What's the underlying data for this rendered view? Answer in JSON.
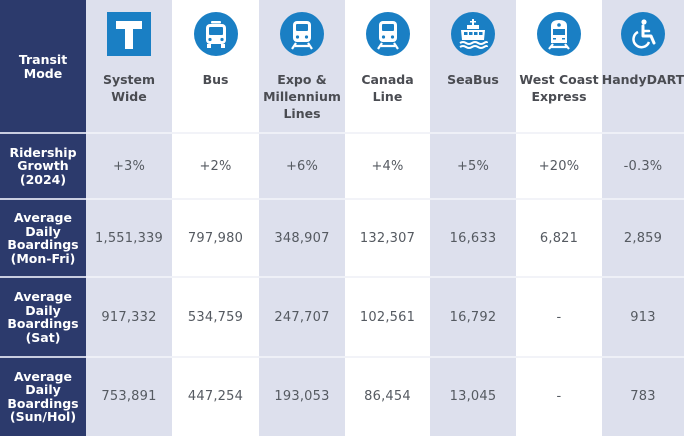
{
  "table": {
    "corner_label": "Transit Mode",
    "colors": {
      "label_column": "#2c3a6c",
      "shaded_column": "#dde0ed",
      "plain_column": "#ffffff",
      "icon_blue": "#1a7fc4"
    },
    "modes": [
      {
        "name_line1": "System",
        "name_line2": "Wide",
        "name_line3": "",
        "icon": "transit-t-logo-icon"
      },
      {
        "name_line1": "Bus",
        "name_line2": "",
        "name_line3": "",
        "icon": "bus-icon"
      },
      {
        "name_line1": "Expo &",
        "name_line2": "Millennium",
        "name_line3": "Lines",
        "icon": "skytrain-icon"
      },
      {
        "name_line1": "Canada",
        "name_line2": "Line",
        "name_line3": "",
        "icon": "skytrain-icon"
      },
      {
        "name_line1": "SeaBus",
        "name_line2": "",
        "name_line3": "",
        "icon": "ferry-icon"
      },
      {
        "name_line1": "West Coast",
        "name_line2": "Express",
        "name_line3": "",
        "icon": "commuter-train-icon"
      },
      {
        "name_line1": "HandyDART",
        "name_line2": "",
        "name_line3": "",
        "icon": "wheelchair-icon"
      }
    ],
    "rows": [
      {
        "label_lines": [
          "Ridership",
          "Growth",
          "(2024)"
        ],
        "values": [
          "+3%",
          "+2%",
          "+6%",
          "+4%",
          "+5%",
          "+20%",
          "-0.3%"
        ]
      },
      {
        "label_lines": [
          "Average",
          "Daily",
          "Boardings",
          "(Mon-Fri)"
        ],
        "values": [
          "1,551,339",
          "797,980",
          "348,907",
          "132,307",
          "16,633",
          "6,821",
          "2,859"
        ]
      },
      {
        "label_lines": [
          "Average",
          "Daily",
          "Boardings",
          "(Sat)"
        ],
        "values": [
          "917,332",
          "534,759",
          "247,707",
          "102,561",
          "16,792",
          "-",
          "913"
        ]
      },
      {
        "label_lines": [
          "Average",
          "Daily",
          "Boardings",
          "(Sun/Hol)"
        ],
        "values": [
          "753,891",
          "447,254",
          "193,053",
          "86,454",
          "13,045",
          "-",
          "783"
        ]
      }
    ]
  }
}
